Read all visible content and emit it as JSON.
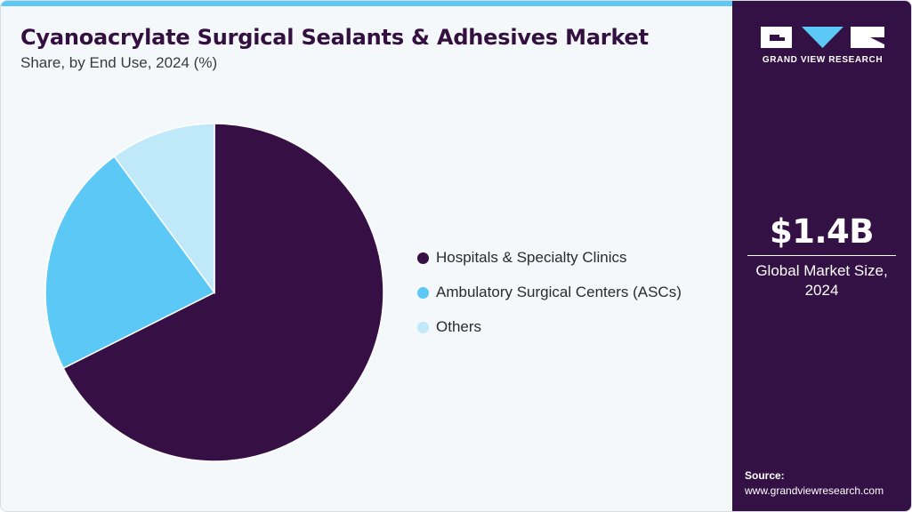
{
  "header": {
    "title": "Cyanoacrylate Surgical Sealants & Adhesives Market",
    "subtitle": "Share, by End Use, 2024 (%)"
  },
  "colors": {
    "accent": "#5bc8f5",
    "sidebar_bg": "#341145",
    "series": [
      "#360f45",
      "#5bc8f5",
      "#bfe8f9"
    ]
  },
  "chart_data": {
    "type": "pie",
    "title": "Cyanoacrylate Surgical Sealants & Adhesives Market",
    "subtitle": "Share, by End Use, 2024 (%)",
    "start_angle_deg": 0,
    "direction": "clockwise",
    "legend_position": "right",
    "categories": [
      "Hospitals & Specialty Clinics",
      "Ambulatory Surgical Centers (ASCs)",
      "Others"
    ],
    "values": [
      67.6,
      22.3,
      10.1
    ],
    "colors": [
      "#360f45",
      "#5bc8f5",
      "#bfe8f9"
    ]
  },
  "sidebar": {
    "brand": "GRAND VIEW RESEARCH",
    "logo_icon": "gvr-logo-icon",
    "stat_value": "$1.4B",
    "stat_label_line1": "Global Market Size,",
    "stat_label_line2": "2024",
    "source_label": "Source:",
    "source_url": "www.grandviewresearch.com"
  }
}
